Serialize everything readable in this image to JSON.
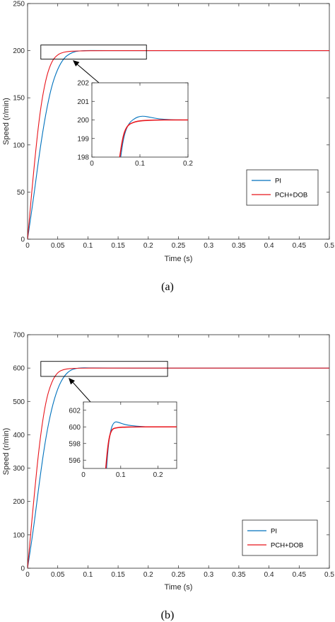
{
  "chart_data": [
    {
      "type": "line",
      "panel": "(a)",
      "caption": "(a)",
      "xlabel": "Time (s)",
      "ylabel": "Speed (r/min)",
      "xlim": [
        0,
        0.5
      ],
      "ylim": [
        0,
        250
      ],
      "xticks": [
        "0",
        "0.05",
        "0.1",
        "0.15",
        "0.2",
        "0.25",
        "0.3",
        "0.35",
        "0.4",
        "0.45",
        "0.5"
      ],
      "yticks": [
        "0",
        "50",
        "100",
        "150",
        "200",
        "250"
      ],
      "legend": {
        "position": "lower-right",
        "entries": [
          "PI",
          "PCH+DOB"
        ]
      },
      "series": [
        {
          "name": "PI",
          "color": "#0072BD",
          "x": [
            0,
            0.01,
            0.02,
            0.03,
            0.04,
            0.05,
            0.06,
            0.07,
            0.08,
            0.09,
            0.1,
            0.12,
            0.15,
            0.2,
            0.5
          ],
          "y": [
            0,
            44,
            93,
            133,
            163,
            181,
            192,
            197,
            199.3,
            199.9,
            200.2,
            200.1,
            200.0,
            200,
            200
          ]
        },
        {
          "name": "PCH+DOB",
          "color": "#E8141B",
          "x": [
            0,
            0.01,
            0.02,
            0.03,
            0.04,
            0.05,
            0.06,
            0.07,
            0.08,
            0.09,
            0.1,
            0.12,
            0.15,
            0.2,
            0.5
          ],
          "y": [
            0,
            72,
            133,
            170,
            189,
            196,
            198.5,
            199.3,
            199.6,
            199.8,
            199.9,
            200,
            200,
            200,
            200
          ]
        }
      ],
      "annotation": {
        "box_x": [
          0.022,
          0.197
        ],
        "box_y": [
          191,
          206
        ]
      },
      "inset": {
        "xlim": [
          0,
          0.2
        ],
        "ylim": [
          198,
          202
        ],
        "xticks": [
          "0",
          "0.1",
          "0.2"
        ],
        "yticks": [
          "198",
          "199",
          "200",
          "201",
          "202"
        ],
        "series": [
          {
            "name": "PI",
            "color": "#0072BD",
            "x": [
              0.06,
              0.065,
              0.07,
              0.075,
              0.08,
              0.09,
              0.1,
              0.11,
              0.12,
              0.14,
              0.16,
              0.18,
              0.2
            ],
            "y": [
              198,
              198.9,
              199.4,
              199.7,
              199.9,
              200.1,
              200.2,
              200.2,
              200.15,
              200.05,
              200.02,
              200.0,
              200.0
            ]
          },
          {
            "name": "PCH+DOB",
            "color": "#E8141B",
            "x": [
              0.058,
              0.062,
              0.066,
              0.07,
              0.075,
              0.08,
              0.09,
              0.1,
              0.11,
              0.12,
              0.14,
              0.16,
              0.18,
              0.2
            ],
            "y": [
              198,
              198.7,
              199.2,
              199.5,
              199.7,
              199.8,
              199.9,
              199.95,
              199.97,
              199.98,
              200.0,
              200.0,
              200.0,
              200.0
            ]
          }
        ]
      }
    },
    {
      "type": "line",
      "panel": "(b)",
      "caption": "(b)",
      "xlabel": "Time (s)",
      "ylabel": "Speed (r/min)",
      "xlim": [
        0,
        0.5
      ],
      "ylim": [
        0,
        700
      ],
      "xticks": [
        "0",
        "0.05",
        "0.1",
        "0.15",
        "0.2",
        "0.25",
        "0.3",
        "0.35",
        "0.4",
        "0.45",
        "0.5"
      ],
      "yticks": [
        "0",
        "100",
        "200",
        "300",
        "400",
        "500",
        "600",
        "700"
      ],
      "legend": {
        "position": "lower-right",
        "entries": [
          "PI",
          "PCH+DOB"
        ]
      },
      "series": [
        {
          "name": "PI",
          "color": "#0072BD",
          "x": [
            0,
            0.01,
            0.02,
            0.03,
            0.04,
            0.05,
            0.06,
            0.07,
            0.08,
            0.09,
            0.1,
            0.12,
            0.15,
            0.2,
            0.5
          ],
          "y": [
            0,
            120,
            265,
            390,
            480,
            540,
            575,
            593,
            599,
            601,
            600.6,
            600.2,
            600,
            600,
            600
          ]
        },
        {
          "name": "PCH+DOB",
          "color": "#E8141B",
          "x": [
            0,
            0.01,
            0.02,
            0.03,
            0.04,
            0.05,
            0.06,
            0.07,
            0.08,
            0.09,
            0.1,
            0.12,
            0.15,
            0.2,
            0.5
          ],
          "y": [
            0,
            200,
            380,
            500,
            560,
            588,
            596,
            598.5,
            599.3,
            599.7,
            599.9,
            600,
            600,
            600,
            600
          ]
        }
      ],
      "annotation": {
        "box_x": [
          0.022,
          0.232
        ],
        "box_y": [
          575,
          620
        ]
      },
      "inset": {
        "xlim": [
          0,
          0.25
        ],
        "ylim": [
          595,
          603
        ],
        "xticks": [
          "0",
          "0.1",
          "0.2"
        ],
        "yticks": [
          "596",
          "598",
          "600",
          "602"
        ],
        "series": [
          {
            "name": "PI",
            "color": "#0072BD",
            "x": [
              0.062,
              0.066,
              0.07,
              0.075,
              0.08,
              0.085,
              0.09,
              0.1,
              0.11,
              0.12,
              0.14,
              0.17,
              0.2,
              0.25
            ],
            "y": [
              595,
              597.3,
              598.8,
              599.9,
              600.4,
              600.6,
              600.6,
              600.45,
              600.3,
              600.2,
              600.1,
              600.0,
              600.0,
              600.0
            ]
          },
          {
            "name": "PCH+DOB",
            "color": "#E8141B",
            "x": [
              0.06,
              0.064,
              0.068,
              0.072,
              0.076,
              0.08,
              0.09,
              0.1,
              0.11,
              0.12,
              0.14,
              0.17,
              0.2,
              0.25
            ],
            "y": [
              595,
              597.0,
              598.4,
              599.2,
              599.6,
              599.8,
              599.9,
              599.95,
              599.97,
              599.98,
              600.0,
              600.0,
              600.0,
              600.0
            ]
          }
        ]
      }
    }
  ]
}
